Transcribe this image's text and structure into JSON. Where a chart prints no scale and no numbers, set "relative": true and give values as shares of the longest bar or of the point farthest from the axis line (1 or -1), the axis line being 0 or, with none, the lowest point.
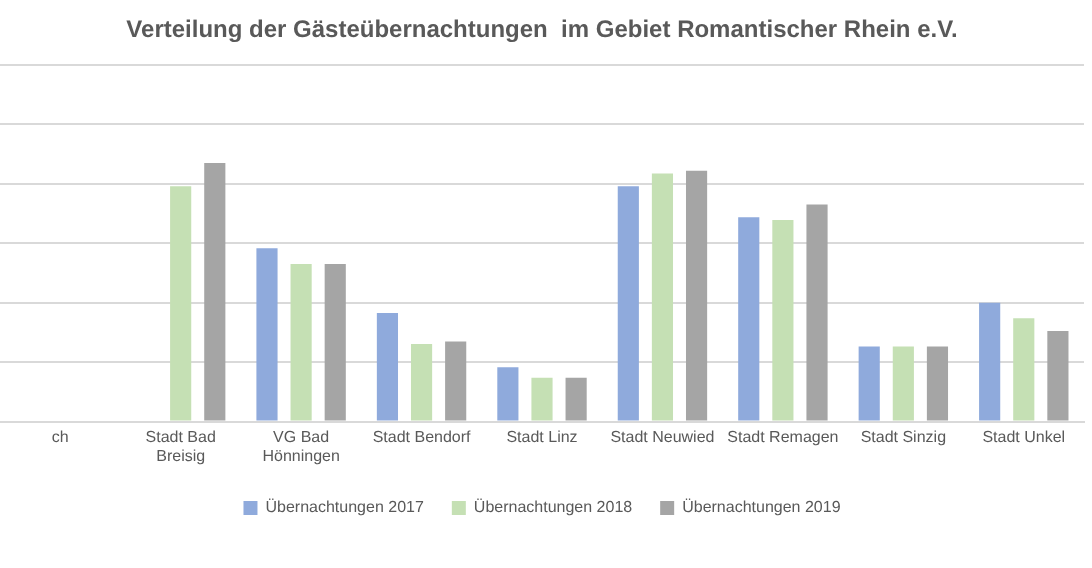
{
  "chart_data": {
    "type": "bar",
    "title": "Verteilung der Gästeübernachtungen  im Gebiet Romantischer Rhein e.V.",
    "relative": true,
    "grid": "y",
    "legend": "bottom",
    "categories": [
      "ch",
      "Stadt Bad Breisig",
      "VG Bad Hönningen",
      "Stadt Bendorf",
      "Stadt Linz",
      "Stadt Neuwied",
      "Stadt Remagen",
      "Stadt Sinzig",
      "Stadt Unkel"
    ],
    "series": [
      {
        "name": "Übernachtungen 2017",
        "color": "#8faadc",
        "values": [
          null,
          null,
          0.67,
          0.42,
          0.21,
          0.91,
          0.79,
          0.29,
          0.46
        ]
      },
      {
        "name": "Übernachtungen 2018",
        "color": "#c5e0b4",
        "values": [
          null,
          0.91,
          0.61,
          0.3,
          0.17,
          0.96,
          0.78,
          0.29,
          0.4
        ]
      },
      {
        "name": "Übernachtungen 2019",
        "color": "#a5a5a5",
        "values": [
          null,
          1,
          0.61,
          0.31,
          0.17,
          0.97,
          0.84,
          0.29,
          0.35
        ]
      }
    ]
  }
}
